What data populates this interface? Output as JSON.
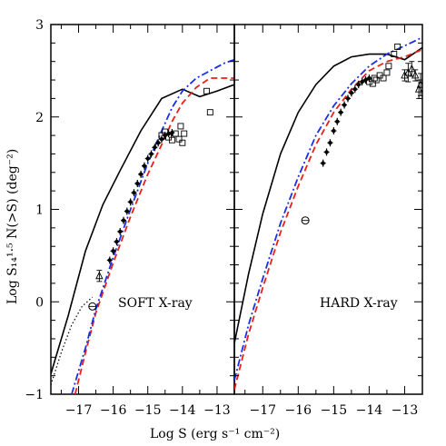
{
  "chart_data": [
    {
      "panel": "soft",
      "type": "scatter",
      "title": "SOFT X-ray",
      "xlabel": "Log S  (erg s⁻¹ cm⁻²)",
      "ylabel": "Log S₁₄¹·⁵ N(>S)  (deg⁻²)",
      "xlim": [
        -17.8,
        -12.5
      ],
      "ylim": [
        -1,
        3
      ],
      "x_ticks": [
        "−17",
        "−16",
        "−15",
        "−14",
        "−13"
      ],
      "y_ticks": [
        "−1",
        "0",
        "1",
        "2",
        "3"
      ],
      "grid": false,
      "series": [
        {
          "style": "solid-black",
          "x": [
            -17.8,
            -17.3,
            -16.8,
            -16.3,
            -15.8,
            -15.2,
            -14.6,
            -14.0,
            -13.5,
            -13.0,
            -12.5
          ],
          "y": [
            -0.78,
            -0.15,
            0.55,
            1.05,
            1.42,
            1.85,
            2.2,
            2.3,
            2.22,
            2.28,
            2.35
          ]
        },
        {
          "style": "dashed-red",
          "x": [
            -17.1,
            -16.8,
            -16.5,
            -16.0,
            -15.5,
            -15.0,
            -14.6,
            -14.3,
            -14.0,
            -13.6,
            -13.2,
            -12.8,
            -12.5
          ],
          "y": [
            -1.0,
            -0.55,
            -0.12,
            0.42,
            0.92,
            1.38,
            1.7,
            1.95,
            2.15,
            2.32,
            2.42,
            2.42,
            2.42
          ]
        },
        {
          "style": "dashdot-blue",
          "x": [
            -17.2,
            -16.8,
            -16.5,
            -16.0,
            -15.5,
            -15.0,
            -14.6,
            -14.3,
            -14.0,
            -13.6,
            -13.2,
            -12.8,
            -12.5
          ],
          "y": [
            -1.0,
            -0.5,
            -0.08,
            0.48,
            1.0,
            1.5,
            1.85,
            2.1,
            2.28,
            2.42,
            2.5,
            2.58,
            2.62
          ]
        },
        {
          "style": "dotted-black",
          "x": [
            -17.8,
            -17.5,
            -17.2,
            -16.9,
            -16.6
          ],
          "y": [
            -0.9,
            -0.55,
            -0.25,
            -0.05,
            0.05
          ]
        },
        {
          "style": "dense-data",
          "x": [
            -16.1,
            -16.0,
            -15.9,
            -15.8,
            -15.7,
            -15.6,
            -15.5,
            -15.4,
            -15.3,
            -15.2,
            -15.1,
            -15.0,
            -14.9,
            -14.8,
            -14.7,
            -14.6,
            -14.5,
            -14.4,
            -14.3
          ],
          "y": [
            0.45,
            0.55,
            0.65,
            0.76,
            0.88,
            0.98,
            1.08,
            1.18,
            1.28,
            1.38,
            1.47,
            1.55,
            1.6,
            1.67,
            1.72,
            1.76,
            1.8,
            1.82,
            1.83
          ]
        },
        {
          "style": "squares",
          "x": [
            -14.6,
            -14.5,
            -14.4,
            -14.3,
            -14.2,
            -14.1,
            -14.05,
            -14.0,
            -13.95,
            -13.3,
            -13.2
          ],
          "y": [
            1.8,
            1.84,
            1.78,
            1.75,
            1.82,
            1.76,
            1.9,
            1.72,
            1.82,
            2.28,
            2.05
          ]
        },
        {
          "style": "circle-plus",
          "x": [
            -16.6
          ],
          "y": [
            -0.05
          ]
        },
        {
          "style": "triangle-err",
          "x": [
            -16.4
          ],
          "y": [
            0.28
          ],
          "err": [
            0.06
          ]
        }
      ]
    },
    {
      "panel": "hard",
      "type": "scatter",
      "title": "HARD X-ray",
      "xlabel": "Log S  (erg s⁻¹ cm⁻²)",
      "ylabel": "",
      "xlim": [
        -17.8,
        -12.5
      ],
      "ylim": [
        -1,
        3
      ],
      "x_ticks": [
        "−17",
        "−16",
        "−15",
        "−14",
        "−13"
      ],
      "y_ticks": [
        "−1",
        "0",
        "1",
        "2",
        "3"
      ],
      "grid": false,
      "series": [
        {
          "style": "solid-black",
          "x": [
            -17.8,
            -17.4,
            -17.0,
            -16.5,
            -16.0,
            -15.5,
            -15.0,
            -14.5,
            -14.0,
            -13.5,
            -13.0,
            -12.5
          ],
          "y": [
            -0.45,
            0.3,
            0.95,
            1.6,
            2.05,
            2.35,
            2.55,
            2.65,
            2.68,
            2.68,
            2.62,
            2.75
          ]
        },
        {
          "style": "dashed-red",
          "x": [
            -17.8,
            -17.4,
            -17.0,
            -16.5,
            -16.0,
            -15.5,
            -15.0,
            -14.5,
            -14.0,
            -13.5,
            -13.0,
            -12.5
          ],
          "y": [
            -0.95,
            -0.35,
            0.15,
            0.75,
            1.25,
            1.7,
            2.05,
            2.3,
            2.5,
            2.6,
            2.65,
            2.73
          ]
        },
        {
          "style": "dashdot-blue",
          "x": [
            -17.8,
            -17.4,
            -17.0,
            -16.5,
            -16.0,
            -15.5,
            -15.0,
            -14.5,
            -14.0,
            -13.5,
            -13.0,
            -12.5
          ],
          "y": [
            -0.85,
            -0.25,
            0.25,
            0.85,
            1.35,
            1.8,
            2.12,
            2.36,
            2.55,
            2.68,
            2.77,
            2.86
          ]
        },
        {
          "style": "dense-data",
          "x": [
            -15.3,
            -15.2,
            -15.1,
            -15.0,
            -14.9,
            -14.8,
            -14.7,
            -14.6,
            -14.5,
            -14.4,
            -14.3,
            -14.2,
            -14.1,
            -14.0
          ],
          "y": [
            1.5,
            1.62,
            1.72,
            1.85,
            1.95,
            2.05,
            2.13,
            2.2,
            2.26,
            2.3,
            2.35,
            2.38,
            2.4,
            2.42
          ]
        },
        {
          "style": "squares",
          "x": [
            -14.0,
            -13.9,
            -13.85,
            -13.8,
            -13.7,
            -13.6,
            -13.5,
            -13.45,
            -13.3,
            -13.2
          ],
          "y": [
            2.38,
            2.36,
            2.42,
            2.4,
            2.45,
            2.42,
            2.48,
            2.55,
            2.68,
            2.76
          ]
        },
        {
          "style": "triangle-err",
          "x": [
            -13.0,
            -12.9,
            -12.8,
            -12.7,
            -12.6,
            -12.55
          ],
          "y": [
            2.45,
            2.48,
            2.52,
            2.45,
            2.3,
            2.35
          ],
          "err": [
            0.06,
            0.1,
            0.08,
            0.06,
            0.1,
            0.12
          ]
        },
        {
          "style": "circle-plus",
          "x": [
            -15.8
          ],
          "y": [
            0.88
          ]
        }
      ]
    }
  ]
}
